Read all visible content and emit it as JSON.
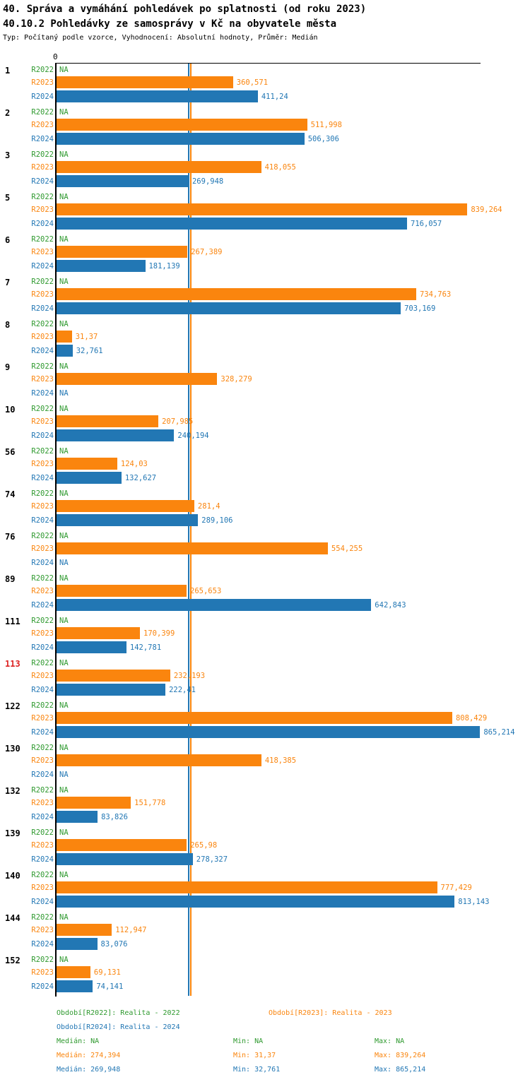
{
  "header": {
    "title": "40. Správa a vymáhání pohledávek po splatnosti (od roku 2023)",
    "subtitle": "40.10.2 Pohledávky ze samosprávy v Kč na obyvatele města",
    "meta": "Typ: Počítaný podle vzorce, Vyhodnocení: Absolutní hodnoty, Průměr: Medián"
  },
  "chart_data": {
    "type": "bar",
    "orientation": "horizontal",
    "title": "40.10.2 Pohledávky ze samosprávy v Kč na obyvatele města",
    "x_axis": {
      "zero_label": "0",
      "min": 0,
      "max": 866,
      "unit": "Kč na obyvatele"
    },
    "series": [
      "R2022",
      "R2023",
      "R2024"
    ],
    "colors": {
      "R2022": "#2E992E",
      "R2023": "#FA850E",
      "R2024": "#2277B4",
      "highlight": "#DD2222",
      "axis": "#000000"
    },
    "na_text": "NA",
    "reference_lines": [
      {
        "series": "R2024",
        "value": 269.948
      },
      {
        "series": "R2023",
        "value": 274.394
      }
    ],
    "groups": [
      {
        "id": "1",
        "highlight": false,
        "values": {
          "R2022": null,
          "R2023": 360.571,
          "R2024": 411.24
        },
        "labels": {
          "R2022": "NA",
          "R2023": "360,571",
          "R2024": "411,24"
        }
      },
      {
        "id": "2",
        "highlight": false,
        "values": {
          "R2022": null,
          "R2023": 511.998,
          "R2024": 506.306
        },
        "labels": {
          "R2022": "NA",
          "R2023": "511,998",
          "R2024": "506,306"
        }
      },
      {
        "id": "3",
        "highlight": false,
        "values": {
          "R2022": null,
          "R2023": 418.055,
          "R2024": 269.948
        },
        "labels": {
          "R2022": "NA",
          "R2023": "418,055",
          "R2024": "269,948"
        }
      },
      {
        "id": "5",
        "highlight": false,
        "values": {
          "R2022": null,
          "R2023": 839.264,
          "R2024": 716.057
        },
        "labels": {
          "R2022": "NA",
          "R2023": "839,264",
          "R2024": "716,057"
        }
      },
      {
        "id": "6",
        "highlight": false,
        "values": {
          "R2022": null,
          "R2023": 267.389,
          "R2024": 181.139
        },
        "labels": {
          "R2022": "NA",
          "R2023": "267,389",
          "R2024": "181,139"
        }
      },
      {
        "id": "7",
        "highlight": false,
        "values": {
          "R2022": null,
          "R2023": 734.763,
          "R2024": 703.169
        },
        "labels": {
          "R2022": "NA",
          "R2023": "734,763",
          "R2024": "703,169"
        }
      },
      {
        "id": "8",
        "highlight": false,
        "values": {
          "R2022": null,
          "R2023": 31.37,
          "R2024": 32.761
        },
        "labels": {
          "R2022": "NA",
          "R2023": "31,37",
          "R2024": "32,761"
        }
      },
      {
        "id": "9",
        "highlight": false,
        "values": {
          "R2022": null,
          "R2023": 328.279,
          "R2024": null
        },
        "labels": {
          "R2022": "NA",
          "R2023": "328,279",
          "R2024": "NA"
        }
      },
      {
        "id": "10",
        "highlight": false,
        "values": {
          "R2022": null,
          "R2023": 207.985,
          "R2024": 240.194
        },
        "labels": {
          "R2022": "NA",
          "R2023": "207,985",
          "R2024": "240,194"
        }
      },
      {
        "id": "56",
        "highlight": false,
        "values": {
          "R2022": null,
          "R2023": 124.03,
          "R2024": 132.627
        },
        "labels": {
          "R2022": "NA",
          "R2023": "124,03",
          "R2024": "132,627"
        }
      },
      {
        "id": "74",
        "highlight": false,
        "values": {
          "R2022": null,
          "R2023": 281.4,
          "R2024": 289.106
        },
        "labels": {
          "R2022": "NA",
          "R2023": "281,4",
          "R2024": "289,106"
        }
      },
      {
        "id": "76",
        "highlight": false,
        "values": {
          "R2022": null,
          "R2023": 554.255,
          "R2024": null
        },
        "labels": {
          "R2022": "NA",
          "R2023": "554,255",
          "R2024": "NA"
        }
      },
      {
        "id": "89",
        "highlight": false,
        "values": {
          "R2022": null,
          "R2023": 265.653,
          "R2024": 642.843
        },
        "labels": {
          "R2022": "NA",
          "R2023": "265,653",
          "R2024": "642,843"
        }
      },
      {
        "id": "111",
        "highlight": false,
        "values": {
          "R2022": null,
          "R2023": 170.399,
          "R2024": 142.781
        },
        "labels": {
          "R2022": "NA",
          "R2023": "170,399",
          "R2024": "142,781"
        }
      },
      {
        "id": "113",
        "highlight": true,
        "values": {
          "R2022": null,
          "R2023": 232.193,
          "R2024": 222.41
        },
        "labels": {
          "R2022": "NA",
          "R2023": "232,193",
          "R2024": "222,41"
        }
      },
      {
        "id": "122",
        "highlight": false,
        "values": {
          "R2022": null,
          "R2023": 808.429,
          "R2024": 865.214
        },
        "labels": {
          "R2022": "NA",
          "R2023": "808,429",
          "R2024": "865,214"
        }
      },
      {
        "id": "130",
        "highlight": false,
        "values": {
          "R2022": null,
          "R2023": 418.385,
          "R2024": null
        },
        "labels": {
          "R2022": "NA",
          "R2023": "418,385",
          "R2024": "NA"
        }
      },
      {
        "id": "132",
        "highlight": false,
        "values": {
          "R2022": null,
          "R2023": 151.778,
          "R2024": 83.826
        },
        "labels": {
          "R2022": "NA",
          "R2023": "151,778",
          "R2024": "83,826"
        }
      },
      {
        "id": "139",
        "highlight": false,
        "values": {
          "R2022": null,
          "R2023": 265.98,
          "R2024": 278.327
        },
        "labels": {
          "R2022": "NA",
          "R2023": "265,98",
          "R2024": "278,327"
        }
      },
      {
        "id": "140",
        "highlight": false,
        "values": {
          "R2022": null,
          "R2023": 777.429,
          "R2024": 813.143
        },
        "labels": {
          "R2022": "NA",
          "R2023": "777,429",
          "R2024": "813,143"
        }
      },
      {
        "id": "144",
        "highlight": false,
        "values": {
          "R2022": null,
          "R2023": 112.947,
          "R2024": 83.076
        },
        "labels": {
          "R2022": "NA",
          "R2023": "112,947",
          "R2024": "83,076"
        }
      },
      {
        "id": "152",
        "highlight": false,
        "values": {
          "R2022": null,
          "R2023": 69.131,
          "R2024": 74.141
        },
        "labels": {
          "R2022": "NA",
          "R2023": "69,131",
          "R2024": "74,141"
        }
      }
    ],
    "legend_position": "bottom"
  },
  "legend": {
    "periods": [
      {
        "series": "R2022",
        "label": "Období[R2022]: Realita - 2022"
      },
      {
        "series": "R2023",
        "label": "Období[R2023]: Realita - 2023"
      },
      {
        "series": "R2024",
        "label": "Období[R2024]: Realita - 2024"
      }
    ],
    "stats": [
      {
        "series": "R2022",
        "median": "Medián: NA",
        "min": "Min: NA",
        "max": "Max: NA"
      },
      {
        "series": "R2023",
        "median": "Medián: 274,394",
        "min": "Min: 31,37",
        "max": "Max: 839,264"
      },
      {
        "series": "R2024",
        "median": "Medián: 269,948",
        "min": "Min: 32,761",
        "max": "Max: 865,214"
      }
    ]
  }
}
